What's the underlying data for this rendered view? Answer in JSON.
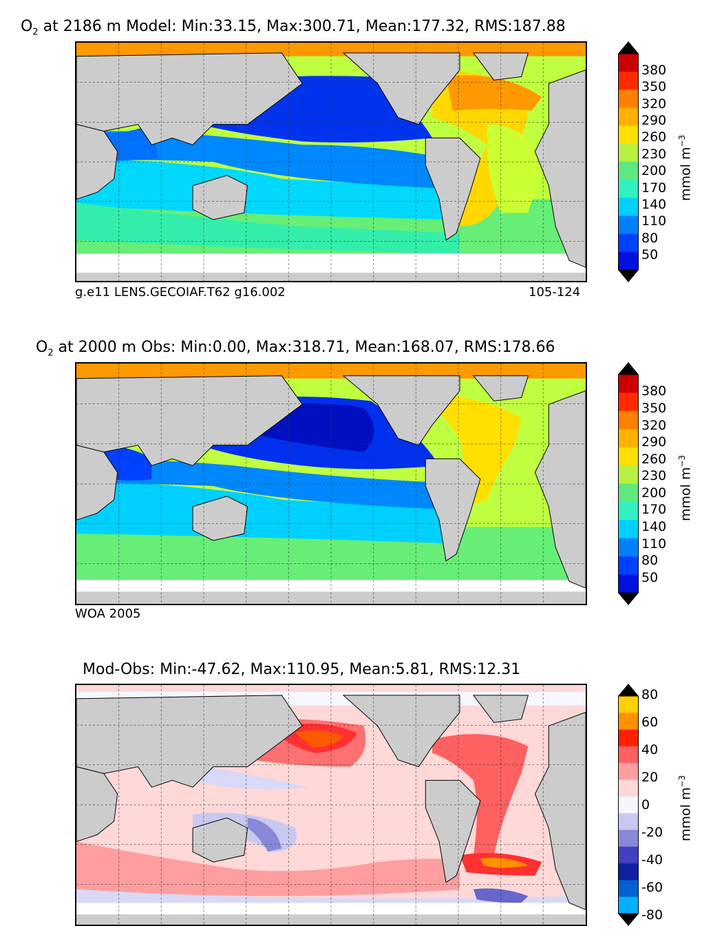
{
  "panels": [
    {
      "title_prefix": "O",
      "title_sub": "2",
      "title_rest": " at 2186 m Model: Min:33.15, Max:300.71, Mean:177.32, RMS:187.88",
      "caption_left": "g.e11 LENS.GECOIAF.T62 g16.002",
      "caption_right": "105-124"
    },
    {
      "title_prefix": "O",
      "title_sub": "2",
      "title_rest": " at 2000 m Obs: Min:0.00, Max:318.71, Mean:168.07, RMS:178.66",
      "caption_left": "WOA 2005",
      "caption_right": ""
    },
    {
      "title_prefix": "",
      "title_sub": "",
      "title_rest": "Mod-Obs: Min:-47.62, Max:110.95, Mean:5.81, RMS:12.31",
      "caption_left": "",
      "caption_right": ""
    }
  ],
  "colorbar1": {
    "unit": "mmol m",
    "unit_sup": "−3",
    "ticks": [
      "380",
      "350",
      "320",
      "290",
      "260",
      "230",
      "200",
      "170",
      "140",
      "110",
      "80",
      "50"
    ],
    "colors": [
      "#7a0000",
      "#cc0000",
      "#ff2a00",
      "#ff7f00",
      "#ffb000",
      "#ffe000",
      "#b8f040",
      "#60e880",
      "#30f0c0",
      "#00d0ff",
      "#0080ff",
      "#0040ff",
      "#0010e0",
      "#000080"
    ]
  },
  "colorbar2": {
    "unit": "mmol m",
    "unit_sup": "−3",
    "ticks": [
      "80",
      "60",
      "40",
      "20",
      "0",
      "-20",
      "-40",
      "-60",
      "-80"
    ],
    "colors": [
      "#ffff00",
      "#ffd000",
      "#ff9000",
      "#ff2000",
      "#ff6060",
      "#ff9ea0",
      "#ffd8d8",
      "#f6f6ff",
      "#c8c8f0",
      "#8888d8",
      "#4040c0",
      "#1020a0",
      "#0060d0",
      "#00b0ff",
      "#00ffff"
    ]
  },
  "colors": {
    "land": "#cccccc",
    "ice": "#ffffff",
    "grid": "#333333"
  }
}
